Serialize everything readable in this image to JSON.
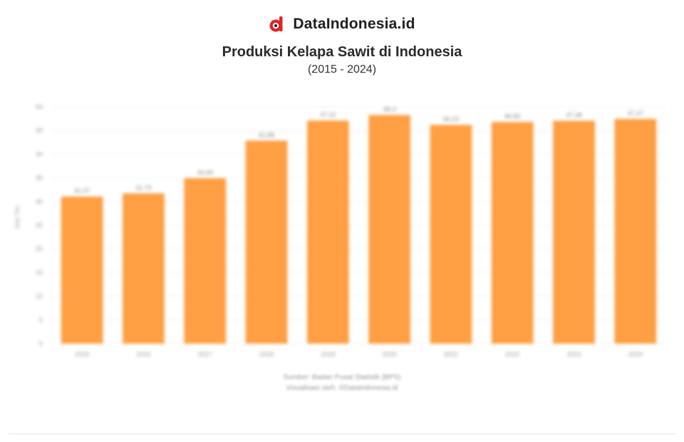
{
  "brand": {
    "name": "DataIndonesia.id",
    "accent": "#e02424"
  },
  "header": {
    "title": "Produksi Kelapa Sawit di Indonesia",
    "subtitle": "(2015 - 2024)"
  },
  "source": {
    "line1": "Sumber: Badan Pusat Statistik (BPS)",
    "line2": "Visualisasi oleh: ©DataIndonesia.id"
  },
  "colors": {
    "bar": "#ff9f43",
    "grid": "#efefef",
    "text": "#9a9a9a"
  },
  "chart_data": {
    "type": "bar",
    "title": "Produksi Kelapa Sawit di Indonesia",
    "subtitle": "(2015 - 2024)",
    "ylabel": "Juta Ton",
    "xlabel": "",
    "ylim": [
      0,
      50
    ],
    "yticks": [
      0,
      5,
      10,
      15,
      20,
      25,
      30,
      35,
      40,
      45,
      50
    ],
    "grid": true,
    "legend": "none",
    "categories": [
      "2015",
      "2016",
      "2017",
      "2018",
      "2019",
      "2020",
      "2021",
      "2022",
      "2023",
      "2024"
    ],
    "values": [
      31.07,
      31.73,
      34.94,
      42.88,
      47.12,
      48.3,
      46.22,
      46.82,
      47.08,
      47.47
    ],
    "value_labels": [
      "31,07",
      "31,73",
      "34,94",
      "42,88",
      "47,12",
      "48,3",
      "46,22",
      "46,82",
      "47,08",
      "47,47"
    ]
  }
}
